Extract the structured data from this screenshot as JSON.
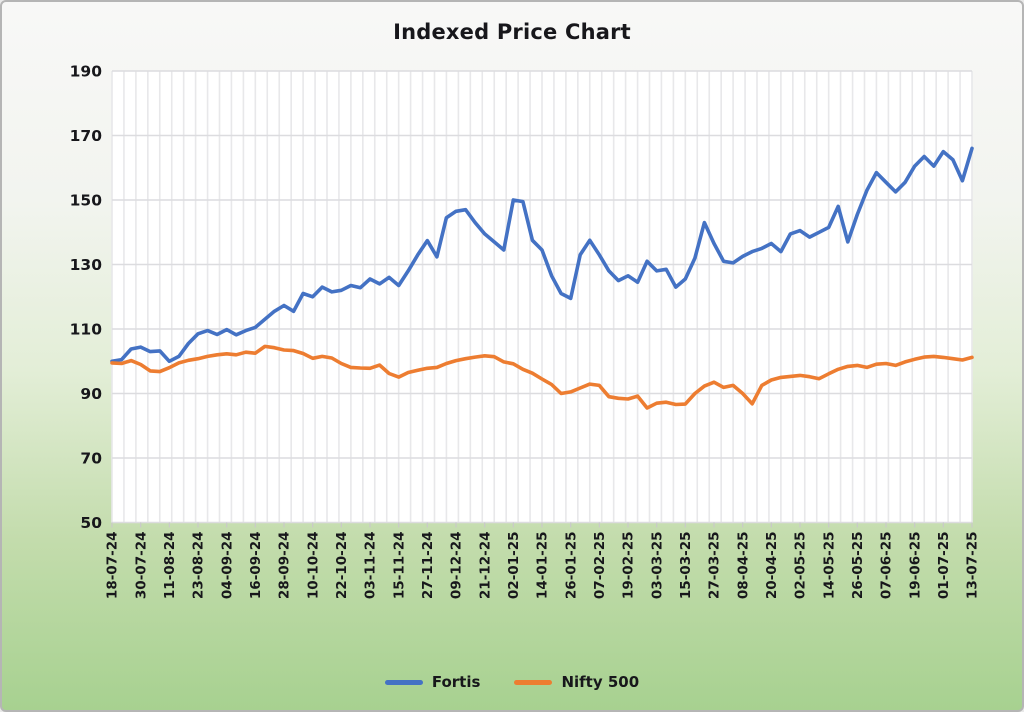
{
  "title": "Indexed Price Chart",
  "legend": {
    "items": [
      {
        "label": "Fortis",
        "color": "#4472C4"
      },
      {
        "label": "Nifty 500",
        "color": "#ED7D31"
      }
    ]
  },
  "chart_data": {
    "type": "line",
    "title": "Indexed Price Chart",
    "xlabel": "",
    "ylabel": "",
    "ylim": [
      50,
      190
    ],
    "y_ticks": [
      190,
      170,
      150,
      130,
      110,
      90,
      70,
      50
    ],
    "grid": "both",
    "legend_position": "bottom",
    "plot_bg": "#ffffff",
    "x_tick_labels": [
      "18-07-24",
      "30-07-24",
      "11-08-24",
      "23-08-24",
      "04-09-24",
      "16-09-24",
      "28-09-24",
      "10-10-24",
      "22-10-24",
      "03-11-24",
      "15-11-24",
      "27-11-24",
      "09-12-24",
      "21-12-24",
      "02-01-25",
      "14-01-25",
      "26-01-25",
      "07-02-25",
      "19-02-25",
      "03-03-25",
      "15-03-25",
      "27-03-25",
      "08-04-25",
      "20-04-25",
      "02-05-25",
      "14-05-25",
      "26-05-25",
      "07-06-25",
      "19-06-25",
      "01-07-25",
      "13-07-25"
    ],
    "points_per_tick": 3,
    "series": [
      {
        "name": "Fortis",
        "color": "#4472C4",
        "values": [
          100,
          100.5,
          103.8,
          104.4,
          103,
          103.2,
          100,
          101.5,
          105.5,
          108.5,
          109.5,
          108.3,
          109.8,
          108.2,
          109.5,
          110.5,
          113,
          115.5,
          117.3,
          115.5,
          121,
          120,
          123,
          121.5,
          122,
          123.5,
          122.8,
          125.5,
          124,
          126,
          123.5,
          128,
          133,
          137.4,
          132.4,
          144.5,
          146.5,
          147,
          143,
          139.5,
          137,
          134.5,
          150,
          149.5,
          137.5,
          134.5,
          126.5,
          121,
          119.5,
          133,
          137.5,
          133,
          128,
          125,
          126.5,
          124.5,
          131,
          128,
          128.5,
          123,
          125.5,
          132,
          143,
          136.5,
          131,
          130.5,
          132.5,
          134,
          135,
          136.5,
          134,
          139.5,
          140.5,
          138.5,
          140,
          141.5,
          148,
          137,
          145.5,
          153,
          158.5,
          155.5,
          152.5,
          155.5,
          160.5,
          163.5,
          160.5,
          165,
          162.5,
          156,
          166
        ]
      },
      {
        "name": "Nifty 500",
        "color": "#ED7D31",
        "values": [
          99.5,
          99.3,
          100.2,
          99,
          97,
          96.8,
          98,
          99.5,
          100.3,
          100.8,
          101.5,
          102,
          102.3,
          102,
          102.8,
          102.5,
          104.6,
          104.2,
          103.5,
          103.3,
          102.4,
          100.9,
          101.5,
          101,
          99.3,
          98.1,
          97.9,
          97.8,
          98.8,
          96.2,
          95.1,
          96.5,
          97.2,
          97.8,
          98.1,
          99.3,
          100.2,
          100.8,
          101.3,
          101.7,
          101.4,
          99.8,
          99.2,
          97.5,
          96.3,
          94.5,
          92.8,
          90,
          90.5,
          91.7,
          92.9,
          92.5,
          89,
          88.5,
          88.3,
          89.2,
          85.5,
          87,
          87.3,
          86.6,
          86.7,
          90,
          92.3,
          93.5,
          91.9,
          92.5,
          90,
          86.8,
          92.5,
          94.2,
          95,
          95.3,
          95.6,
          95.2,
          94.6,
          96.1,
          97.5,
          98.4,
          98.7,
          98.1,
          99.1,
          99.3,
          98.7,
          99.8,
          100.6,
          101.3,
          101.5,
          101.2,
          100.8,
          100.4,
          101.2
        ]
      }
    ],
    "style": {
      "v_gridline_color": "#e8e8ea",
      "h_gridline_color": "#dcdcdf",
      "v_grid_intervals": 72,
      "tick_color": "#c9c9c9",
      "line_width": 3.6
    }
  }
}
